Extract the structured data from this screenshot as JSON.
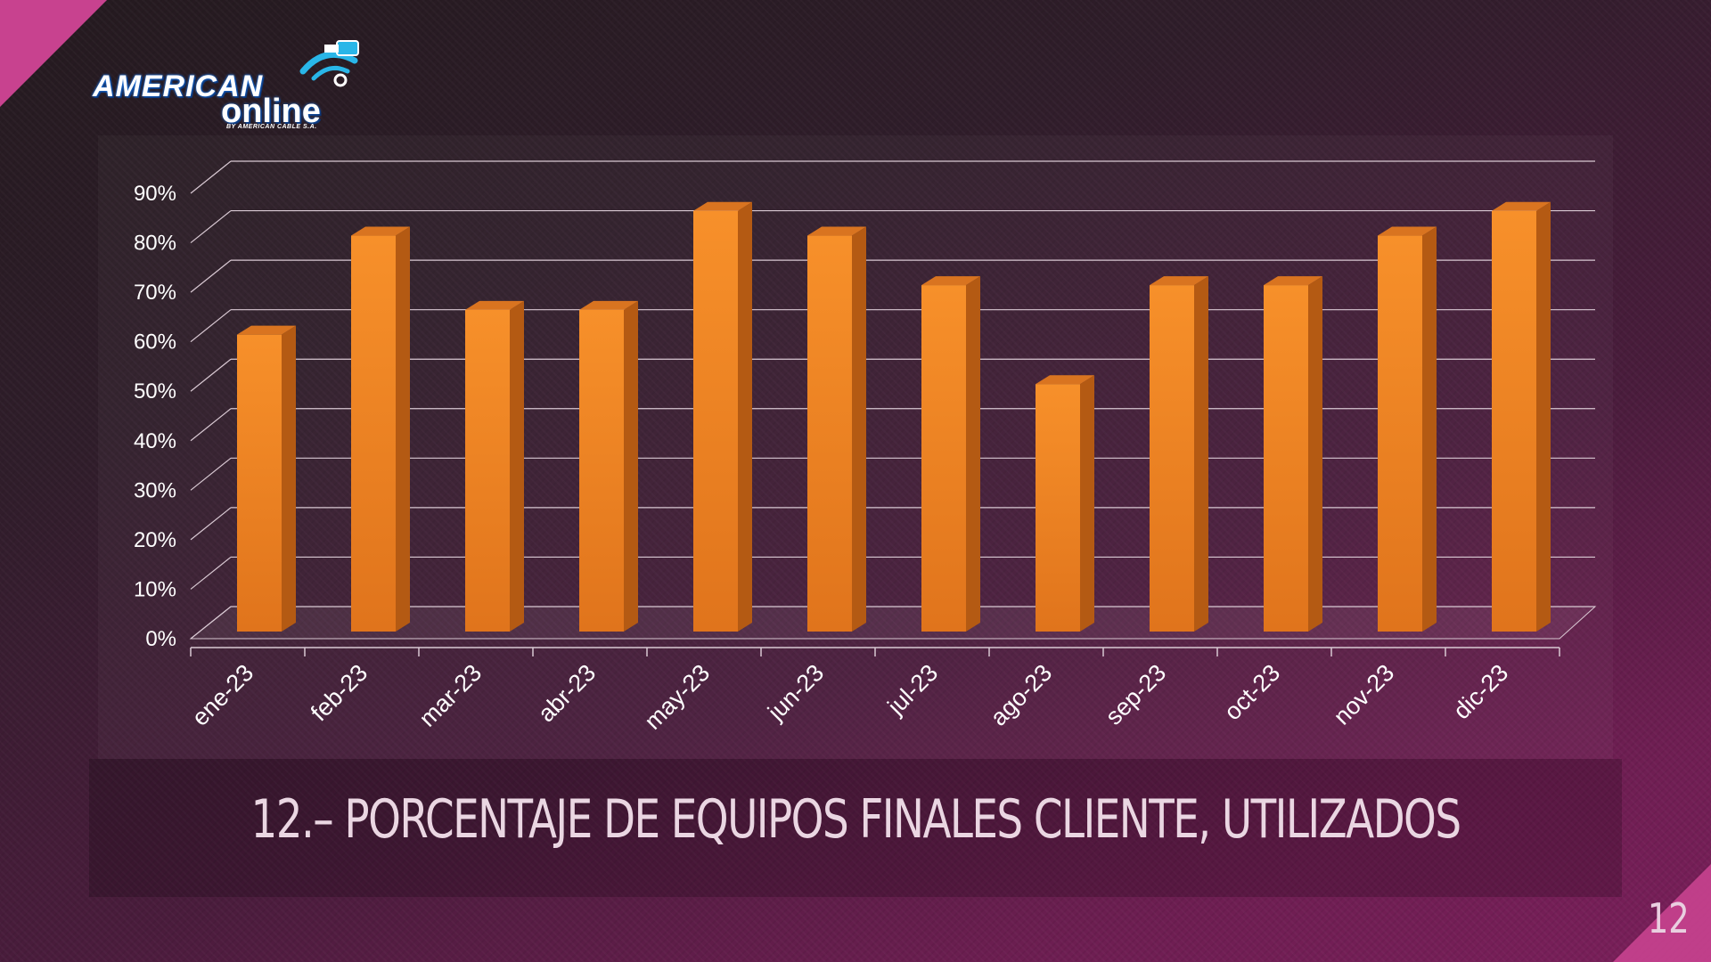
{
  "brand": {
    "word1": "AMERICAN",
    "word2": "online",
    "tagline": "BY AMERICAN CABLE S.A.",
    "icon": "cable-connector-icon",
    "colors": {
      "glow": "#1e6fd6",
      "accent": "#29b6e8"
    }
  },
  "slide": {
    "title": "12.– PORCENTAJE DE EQUIPOS FINALES CLIENTE, UTILIZADOS",
    "number": "12"
  },
  "colors": {
    "bar_front": "#f7902a",
    "bar_side": "#b45a13",
    "bar_top": "#d97420",
    "grid": "#d9c9d3",
    "axis_text": "#ffffff"
  },
  "chart_data": {
    "type": "bar",
    "style": "3d-column",
    "categories": [
      "ene-23",
      "feb-23",
      "mar-23",
      "abr-23",
      "may-23",
      "jun-23",
      "jul-23",
      "ago-23",
      "sep-23",
      "oct-23",
      "nov-23",
      "dic-23"
    ],
    "values": [
      60,
      80,
      65,
      65,
      85,
      80,
      70,
      50,
      70,
      70,
      80,
      85
    ],
    "y_unit": "%",
    "ylim": [
      0,
      90
    ],
    "y_ticks": [
      "0%",
      "10%",
      "20%",
      "30%",
      "40%",
      "50%",
      "60%",
      "70%",
      "80%",
      "90%"
    ],
    "grid": true,
    "legend": "none",
    "title": "",
    "xlabel": "",
    "ylabel": ""
  }
}
